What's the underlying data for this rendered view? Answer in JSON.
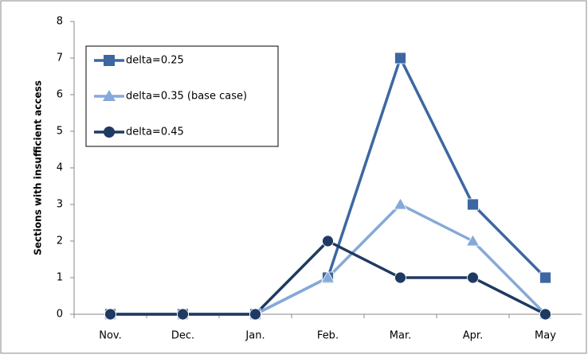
{
  "chart_data": {
    "type": "line",
    "y_label": "Sections with insufficient access",
    "categories": [
      "Nov.",
      "Dec.",
      "Jan.",
      "Feb.",
      "Mar.",
      "Apr.",
      "May"
    ],
    "series": [
      {
        "name": "delta=0.25",
        "color": "#3d67a2",
        "marker": "square",
        "values": [
          0,
          0,
          0,
          1,
          7,
          3,
          1
        ]
      },
      {
        "name": "delta=0.35 (base case)",
        "color": "#85a9d9",
        "marker": "triangle",
        "values": [
          0,
          0,
          0,
          1,
          3,
          2,
          0
        ]
      },
      {
        "name": "delta=0.45",
        "color": "#1f3a62",
        "marker": "circle",
        "values": [
          0,
          0,
          0,
          2,
          1,
          1,
          0
        ]
      }
    ],
    "ylim": [
      0,
      8
    ],
    "yticks": [
      0,
      1,
      2,
      3,
      4,
      5,
      6,
      7,
      8
    ],
    "grid": false,
    "legend": "upper left"
  }
}
